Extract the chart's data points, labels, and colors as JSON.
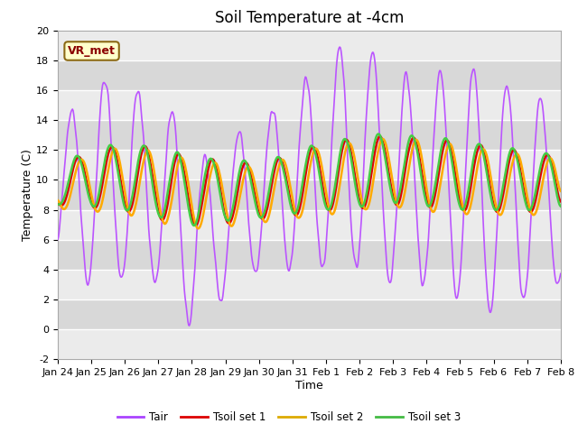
{
  "title": "Soil Temperature at -4cm",
  "xlabel": "Time",
  "ylabel": "Temperature (C)",
  "ylim": [
    -2,
    20
  ],
  "legend_labels": [
    "Tair",
    "Tsoil set 1",
    "Tsoil set 2",
    "Tsoil set 3"
  ],
  "legend_colors": [
    "#aa44ff",
    "#dd0000",
    "#ddaa00",
    "#44bb44"
  ],
  "xtick_labels": [
    "Jan 24",
    "Jan 25",
    "Jan 26",
    "Jan 27",
    "Jan 28",
    "Jan 29",
    "Jan 30",
    "Jan 31",
    "Feb 1",
    "Feb 2",
    "Feb 3",
    "Feb 4",
    "Feb 5",
    "Feb 6",
    "Feb 7",
    "Feb 8"
  ],
  "vr_met_label": "VR_met",
  "tair_color": "#bb55ff",
  "tsoil1_color": "#dd0000",
  "tsoil2_color": "#ffaa00",
  "tsoil3_color": "#44cc44",
  "title_fontsize": 12,
  "axis_label_fontsize": 9,
  "tick_fontsize": 8,
  "fig_bg": "#ffffff",
  "plot_bg": "#e8e8e8",
  "band_dark": "#d8d8d8",
  "band_light": "#ebebeb",
  "grid_color": "#ffffff",
  "n_days": 15
}
